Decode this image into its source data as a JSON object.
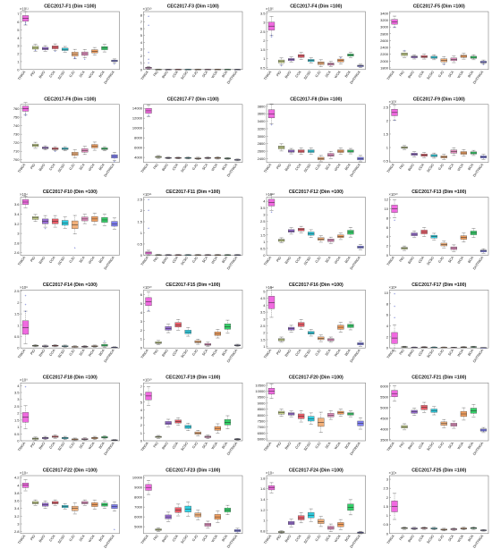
{
  "figure": {
    "algorithms": [
      "TRIGA",
      "PIO",
      "BWO",
      "COA",
      "SCSO",
      "GJO",
      "SCA",
      "WOA",
      "BOA",
      "DHTRIGA"
    ],
    "colors": [
      "#f06ae0",
      "#c8d48c",
      "#9b6fd6",
      "#ec5f6b",
      "#2fd0e3",
      "#f2b07a",
      "#e38fc0",
      "#f3a060",
      "#36d06a",
      "#7f7ff2"
    ]
  },
  "chart_data": [
    {
      "type": "box",
      "title": "CEC2017-F1 (Dim =100)",
      "exponent": "×10¹¹",
      "yticks": [
        "0",
        "1",
        "2",
        "3",
        "4",
        "5",
        "6",
        "7"
      ],
      "ylim": [
        0,
        7.3
      ],
      "medians": [
        6.45,
        2.75,
        2.65,
        2.8,
        2.55,
        1.95,
        2.0,
        2.3,
        2.7,
        1.1
      ],
      "spreads": [
        0.35,
        0.18,
        0.15,
        0.18,
        0.15,
        0.25,
        0.22,
        0.2,
        0.2,
        0.1
      ],
      "outliers": [
        [
          5.7,
          5.9
        ],
        [
          2.4
        ],
        [],
        [
          2.3
        ],
        [],
        [
          1.4,
          1.5
        ],
        [
          1.3
        ],
        [],
        [],
        [
          0.7
        ]
      ]
    },
    {
      "type": "box",
      "title": "CEC2017-F3 (Dim =100)",
      "exponent": "×10¹³",
      "yticks": [
        "0",
        "1",
        "2",
        "3",
        "4",
        "5",
        "6",
        "7",
        "8"
      ],
      "ylim": [
        0,
        8.5
      ],
      "medians": [
        0.25,
        0.03,
        0.02,
        0.03,
        0.03,
        0.03,
        0.03,
        0.03,
        0.03,
        0.02
      ],
      "spreads": [
        0.08,
        0.02,
        0.02,
        0.02,
        0.02,
        0.02,
        0.02,
        0.02,
        0.02,
        0.02
      ],
      "outliers": [
        [
          7.8,
          6.5,
          2.5,
          1.5,
          1.0
        ],
        [],
        [],
        [],
        [],
        [],
        [],
        [],
        [],
        []
      ]
    },
    {
      "type": "box",
      "title": "CEC2017-F4 (Dim =100)",
      "exponent": "×10⁵",
      "yticks": [
        "0.5",
        "1",
        "1.5",
        "2",
        "2.5",
        "3",
        "3.5"
      ],
      "ylim": [
        0.4,
        3.6
      ],
      "medians": [
        2.8,
        0.85,
        0.95,
        1.15,
        0.9,
        0.75,
        0.7,
        0.9,
        1.2,
        0.6
      ],
      "spreads": [
        0.22,
        0.08,
        0.06,
        0.08,
        0.06,
        0.08,
        0.06,
        0.08,
        0.06,
        0.04
      ],
      "outliers": [
        [
          2.2,
          2.3
        ],
        [
          0.6
        ],
        [],
        [],
        [],
        [],
        [],
        [
          1.05
        ],
        [],
        []
      ]
    },
    {
      "type": "box",
      "title": "CEC2017-F5 (Dim =100)",
      "exponent": "",
      "yticks": [
        "1800",
        "2000",
        "2200",
        "2400",
        "2600",
        "2800",
        "3000",
        "3200",
        "3400"
      ],
      "ylim": [
        1750,
        3450
      ],
      "medians": [
        3150,
        2200,
        2120,
        2130,
        2110,
        2020,
        2050,
        2140,
        2110,
        1970
      ],
      "spreads": [
        70,
        40,
        25,
        30,
        30,
        45,
        40,
        35,
        30,
        25
      ],
      "outliers": [
        [
          3000
        ],
        [
          2300
        ],
        [],
        [],
        [],
        [
          1900
        ],
        [],
        [],
        [],
        [
          1900
        ]
      ]
    },
    {
      "type": "box",
      "title": "CEC2017-F6 (Dim =100)",
      "exponent": "",
      "yticks": [
        "700",
        "710",
        "720",
        "730",
        "740",
        "750",
        "760"
      ],
      "ylim": [
        697,
        765
      ],
      "medians": [
        760,
        717,
        714,
        713,
        713,
        707,
        711,
        716,
        713,
        704
      ],
      "spreads": [
        3,
        1.5,
        1,
        1,
        1,
        2,
        2,
        2,
        1,
        2
      ],
      "outliers": [
        [
          752,
          754
        ],
        [],
        [],
        [
          710
        ],
        [],
        [],
        [],
        [],
        [],
        [
          698
        ]
      ]
    },
    {
      "type": "box",
      "title": "CEC2017-F7 (Dim =100)",
      "exponent": "",
      "yticks": [
        "4000",
        "6000",
        "8000",
        "10000",
        "12000",
        "14000"
      ],
      "ylim": [
        3000,
        14800
      ],
      "medians": [
        13500,
        4100,
        3900,
        3900,
        3900,
        3800,
        3900,
        3900,
        3800,
        3500
      ],
      "spreads": [
        500,
        120,
        80,
        80,
        90,
        100,
        90,
        100,
        80,
        80
      ],
      "outliers": [
        [
          12500
        ],
        [],
        [],
        [],
        [],
        [],
        [],
        [],
        [],
        []
      ]
    },
    {
      "type": "box",
      "title": "CEC2017-F8 (Dim =100)",
      "exponent": "",
      "yticks": [
        "2400",
        "2600",
        "2800",
        "3000",
        "3200",
        "3400",
        "3600",
        "3800"
      ],
      "ylim": [
        2300,
        3850
      ],
      "medians": [
        3600,
        2700,
        2600,
        2600,
        2600,
        2400,
        2500,
        2600,
        2600,
        2400
      ],
      "spreads": [
        110,
        40,
        30,
        35,
        35,
        35,
        40,
        35,
        30,
        35
      ],
      "outliers": [
        [
          3300
        ],
        [],
        [],
        [],
        [],
        [],
        [],
        [],
        [],
        []
      ]
    },
    {
      "type": "box",
      "title": "CEC2017-F9 (Dim =100)",
      "exponent": "×10⁵",
      "yticks": [
        "0.5",
        "1",
        "1.5",
        "2",
        "2.5"
      ],
      "ylim": [
        0.45,
        2.6
      ],
      "medians": [
        2.3,
        1.0,
        0.75,
        0.72,
        0.7,
        0.65,
        0.85,
        0.8,
        0.8,
        0.65
      ],
      "spreads": [
        0.12,
        0.03,
        0.04,
        0.04,
        0.04,
        0.04,
        0.06,
        0.05,
        0.04,
        0.04
      ],
      "outliers": [
        [
          2.0
        ],
        [],
        [],
        [],
        [],
        [],
        [],
        [],
        [],
        []
      ]
    },
    {
      "type": "box",
      "title": "CEC2017-F10 (Dim =100)",
      "exponent": "×10⁴",
      "yticks": [
        "2.6",
        "2.8",
        "3",
        "3.2",
        "3.4",
        "3.6"
      ],
      "ylim": [
        2.55,
        3.75
      ],
      "medians": [
        3.65,
        3.32,
        3.25,
        3.25,
        3.22,
        3.18,
        3.3,
        3.3,
        3.28,
        3.2
      ],
      "spreads": [
        0.05,
        0.03,
        0.05,
        0.05,
        0.05,
        0.08,
        0.04,
        0.05,
        0.05,
        0.05
      ],
      "outliers": [
        [],
        [],
        [
          3.1
        ],
        [],
        [],
        [
          2.7
        ],
        [],
        [],
        [],
        []
      ]
    },
    {
      "type": "box",
      "title": "CEC2017-F11 (Dim =100)",
      "exponent": "×10¹¹",
      "yticks": [
        "0",
        "0.5",
        "1",
        "1.5",
        "2",
        "2.5"
      ],
      "ylim": [
        0,
        2.6
      ],
      "medians": [
        0.1,
        0.01,
        0.01,
        0.01,
        0.01,
        0.01,
        0.01,
        0.01,
        0.01,
        0.01
      ],
      "spreads": [
        0.05,
        0.01,
        0.01,
        0.01,
        0.01,
        0.01,
        0.01,
        0.01,
        0.01,
        0.01
      ],
      "outliers": [
        [
          2.5,
          2.0,
          1.2
        ],
        [],
        [],
        [],
        [],
        [],
        [],
        [],
        [],
        []
      ]
    },
    {
      "type": "box",
      "title": "CEC2017-F12 (Dim =100)",
      "exponent": "×10¹⁰",
      "yticks": [
        "0",
        "0.5",
        "1",
        "1.5",
        "2",
        "2.5",
        "3",
        "3.5",
        "4"
      ],
      "ylim": [
        0,
        4.3
      ],
      "medians": [
        3.9,
        1.1,
        1.8,
        1.9,
        1.6,
        1.2,
        1.1,
        1.4,
        1.7,
        0.6
      ],
      "spreads": [
        0.25,
        0.08,
        0.1,
        0.1,
        0.12,
        0.1,
        0.1,
        0.1,
        0.15,
        0.08
      ],
      "outliers": [
        [
          3.2
        ],
        [],
        [],
        [],
        [],
        [],
        [],
        [],
        [],
        []
      ]
    },
    {
      "type": "box",
      "title": "CEC2017-F13 (Dim =100)",
      "exponent": "×10¹⁰",
      "yticks": [
        "0",
        "2",
        "4",
        "6",
        "8",
        "10",
        "12"
      ],
      "ylim": [
        0,
        12.5
      ],
      "medians": [
        10,
        1.5,
        4.5,
        5,
        4,
        2.3,
        1.5,
        3.8,
        4.8,
        0.9
      ],
      "spreads": [
        0.8,
        0.2,
        0.3,
        0.4,
        0.3,
        0.3,
        0.3,
        0.4,
        0.4,
        0.2
      ],
      "outliers": [
        [
          7.5
        ],
        [],
        [],
        [],
        [],
        [],
        [],
        [],
        [],
        []
      ]
    },
    {
      "type": "box",
      "title": "CEC2017-F14 (Dim =100)",
      "exponent": "×10⁸",
      "yticks": [
        "0",
        "0.5",
        "1",
        "1.5",
        "2",
        "2.5"
      ],
      "ylim": [
        0,
        2.55
      ],
      "medians": [
        0.9,
        0.1,
        0.08,
        0.1,
        0.08,
        0.05,
        0.06,
        0.08,
        0.12,
        0.03
      ],
      "spreads": [
        0.3,
        0.02,
        0.02,
        0.02,
        0.02,
        0.02,
        0.02,
        0.02,
        0.04,
        0.01
      ],
      "outliers": [
        [
          2.3,
          1.9,
          1.6
        ],
        [],
        [],
        [],
        [],
        [],
        [],
        [],
        [
          0.3
        ],
        []
      ]
    },
    {
      "type": "box",
      "title": "CEC2017-F15 (Dim =100)",
      "exponent": "×10¹⁰",
      "yticks": [
        "0",
        "1",
        "2",
        "3",
        "4",
        "5",
        "6"
      ],
      "ylim": [
        0,
        6.5
      ],
      "medians": [
        5.2,
        0.6,
        2.2,
        2.6,
        1.8,
        0.7,
        0.4,
        1.6,
        2.4,
        0.3
      ],
      "spreads": [
        0.45,
        0.1,
        0.2,
        0.25,
        0.2,
        0.12,
        0.1,
        0.2,
        0.3,
        0.05
      ],
      "outliers": [
        [
          4.2
        ],
        [],
        [],
        [],
        [],
        [],
        [],
        [],
        [],
        []
      ]
    },
    {
      "type": "box",
      "title": "CEC2017-F16 (Dim =100)",
      "exponent": "×10⁴",
      "yticks": [
        "1",
        "1.5",
        "2",
        "2.5",
        "3",
        "3.5",
        "4",
        "4.5",
        "5"
      ],
      "ylim": [
        0.9,
        5.1
      ],
      "medians": [
        4.2,
        1.5,
        2.3,
        2.6,
        2.0,
        1.6,
        1.5,
        2.4,
        2.5,
        1.2
      ],
      "spreads": [
        0.45,
        0.08,
        0.1,
        0.15,
        0.1,
        0.1,
        0.08,
        0.15,
        0.12,
        0.08
      ],
      "outliers": [
        [],
        [],
        [],
        [],
        [],
        [],
        [],
        [],
        [],
        []
      ]
    },
    {
      "type": "box",
      "title": "CEC2017-F17 (Dim =100)",
      "exponent": "×10⁸",
      "yticks": [
        "0",
        "2",
        "4",
        "6",
        "8",
        "10"
      ],
      "ylim": [
        0,
        10.5
      ],
      "medians": [
        1.8,
        0.2,
        0.1,
        0.15,
        0.12,
        0.1,
        0.08,
        0.15,
        0.2,
        0.05
      ],
      "spreads": [
        1.0,
        0.05,
        0.04,
        0.05,
        0.04,
        0.04,
        0.03,
        0.05,
        0.05,
        0.02
      ],
      "outliers": [
        [
          9.8,
          7.5,
          5.5
        ],
        [],
        [],
        [],
        [],
        [],
        [],
        [],
        [],
        []
      ]
    },
    {
      "type": "box",
      "title": "CEC2017-F18 (Dim =100)",
      "exponent": "×10⁹",
      "yticks": [
        "0",
        "0.5",
        "1",
        "1.5",
        "2",
        "2.5",
        "3",
        "3.5",
        "4"
      ],
      "ylim": [
        0,
        4.2
      ],
      "medians": [
        1.7,
        0.15,
        0.2,
        0.3,
        0.2,
        0.1,
        0.12,
        0.2,
        0.25,
        0.05
      ],
      "spreads": [
        0.35,
        0.05,
        0.05,
        0.05,
        0.05,
        0.04,
        0.04,
        0.05,
        0.05,
        0.02
      ],
      "outliers": [
        [
          3.9
        ],
        [],
        [],
        [],
        [],
        [],
        [],
        [],
        [],
        []
      ]
    },
    {
      "type": "box",
      "title": "CEC2017-F19 (Dim =100)",
      "exponent": "×10¹⁰",
      "yticks": [
        "0",
        "1",
        "2",
        "3",
        "4",
        "5",
        "6",
        "7"
      ],
      "ylim": [
        0,
        7.5
      ],
      "medians": [
        5.8,
        0.5,
        2.3,
        2.5,
        1.8,
        1.0,
        0.5,
        1.6,
        2.4,
        0.2
      ],
      "spreads": [
        0.5,
        0.08,
        0.2,
        0.2,
        0.2,
        0.15,
        0.1,
        0.25,
        0.35,
        0.05
      ],
      "outliers": [
        [],
        [],
        [],
        [],
        [],
        [],
        [],
        [],
        [],
        []
      ]
    },
    {
      "type": "box",
      "title": "CEC2017-F20 (Dim =100)",
      "exponent": "",
      "yticks": [
        "6000",
        "6500",
        "7000",
        "7500",
        "8000",
        "8500",
        "9000",
        "9500",
        "10000",
        "10500"
      ],
      "ylim": [
        5850,
        10700
      ],
      "medians": [
        10000,
        8200,
        8100,
        7900,
        7700,
        7400,
        8000,
        8200,
        8100,
        7300
      ],
      "spreads": [
        250,
        120,
        100,
        200,
        200,
        350,
        150,
        120,
        100,
        200
      ],
      "outliers": [
        [],
        [],
        [],
        [],
        [],
        [],
        [],
        [],
        [],
        []
      ]
    },
    {
      "type": "box",
      "title": "CEC2017-F21 (Dim =100)",
      "exponent": "",
      "yticks": [
        "3500",
        "4000",
        "4500",
        "5000",
        "5500",
        "6000"
      ],
      "ylim": [
        3450,
        6150
      ],
      "medians": [
        5650,
        4100,
        4800,
        5000,
        4850,
        4250,
        4200,
        4700,
        4850,
        3950
      ],
      "spreads": [
        150,
        60,
        70,
        100,
        80,
        80,
        70,
        120,
        120,
        50
      ],
      "outliers": [
        [],
        [],
        [],
        [],
        [],
        [],
        [],
        [],
        [],
        [
          3900
        ]
      ]
    },
    {
      "type": "box",
      "title": "CEC2017-F22 (Dim =100)",
      "exponent": "×10⁴",
      "yticks": [
        "2.8",
        "3",
        "3.2",
        "3.4",
        "3.6",
        "3.8",
        "4",
        "4.2"
      ],
      "ylim": [
        2.75,
        4.25
      ],
      "medians": [
        4.0,
        3.55,
        3.5,
        3.55,
        3.45,
        3.4,
        3.55,
        3.5,
        3.5,
        3.45
      ],
      "spreads": [
        0.06,
        0.03,
        0.04,
        0.03,
        0.03,
        0.06,
        0.03,
        0.05,
        0.04,
        0.05
      ],
      "outliers": [
        [],
        [],
        [],
        [],
        [],
        [],
        [],
        [],
        [],
        [
          2.85
        ]
      ]
    },
    {
      "type": "box",
      "title": "CEC2017-F23 (Dim =100)",
      "exponent": "",
      "yticks": [
        "5000",
        "6000",
        "7000",
        "8000",
        "9000",
        "10000"
      ],
      "ylim": [
        4300,
        10200
      ],
      "medians": [
        9000,
        4700,
        6000,
        6700,
        6800,
        6200,
        5200,
        6000,
        6700,
        4600
      ],
      "spreads": [
        300,
        80,
        200,
        250,
        300,
        200,
        150,
        250,
        200,
        100
      ],
      "outliers": [
        [],
        [],
        [],
        [],
        [],
        [],
        [],
        [],
        [],
        []
      ]
    },
    {
      "type": "box",
      "title": "CEC2017-F24 (Dim =100)",
      "exponent": "×10⁴",
      "yticks": [
        "0.8",
        "1",
        "1.2",
        "1.4",
        "1.6",
        "1.8"
      ],
      "ylim": [
        0.75,
        1.85
      ],
      "medians": [
        1.62,
        0.78,
        0.95,
        1.05,
        1.1,
        0.98,
        0.86,
        0.92,
        1.25,
        0.77
      ],
      "spreads": [
        0.04,
        0.01,
        0.03,
        0.04,
        0.05,
        0.04,
        0.03,
        0.04,
        0.06,
        0.01
      ],
      "outliers": [
        [],
        [],
        [],
        [],
        [],
        [],
        [],
        [],
        [],
        []
      ]
    },
    {
      "type": "box",
      "title": "CEC2017-F25 (Dim =100)",
      "exponent": "×10⁴",
      "yticks": [
        "0",
        "0.5",
        "1",
        "1.5",
        "2",
        "2.5",
        "3"
      ],
      "ylim": [
        0,
        3.2
      ],
      "medians": [
        1.5,
        0.3,
        0.28,
        0.3,
        0.28,
        0.22,
        0.24,
        0.28,
        0.3,
        0.18
      ],
      "spreads": [
        0.3,
        0.03,
        0.03,
        0.03,
        0.03,
        0.03,
        0.03,
        0.03,
        0.03,
        0.02
      ],
      "outliers": [
        [],
        [],
        [],
        [],
        [],
        [],
        [],
        [],
        [],
        []
      ]
    }
  ]
}
